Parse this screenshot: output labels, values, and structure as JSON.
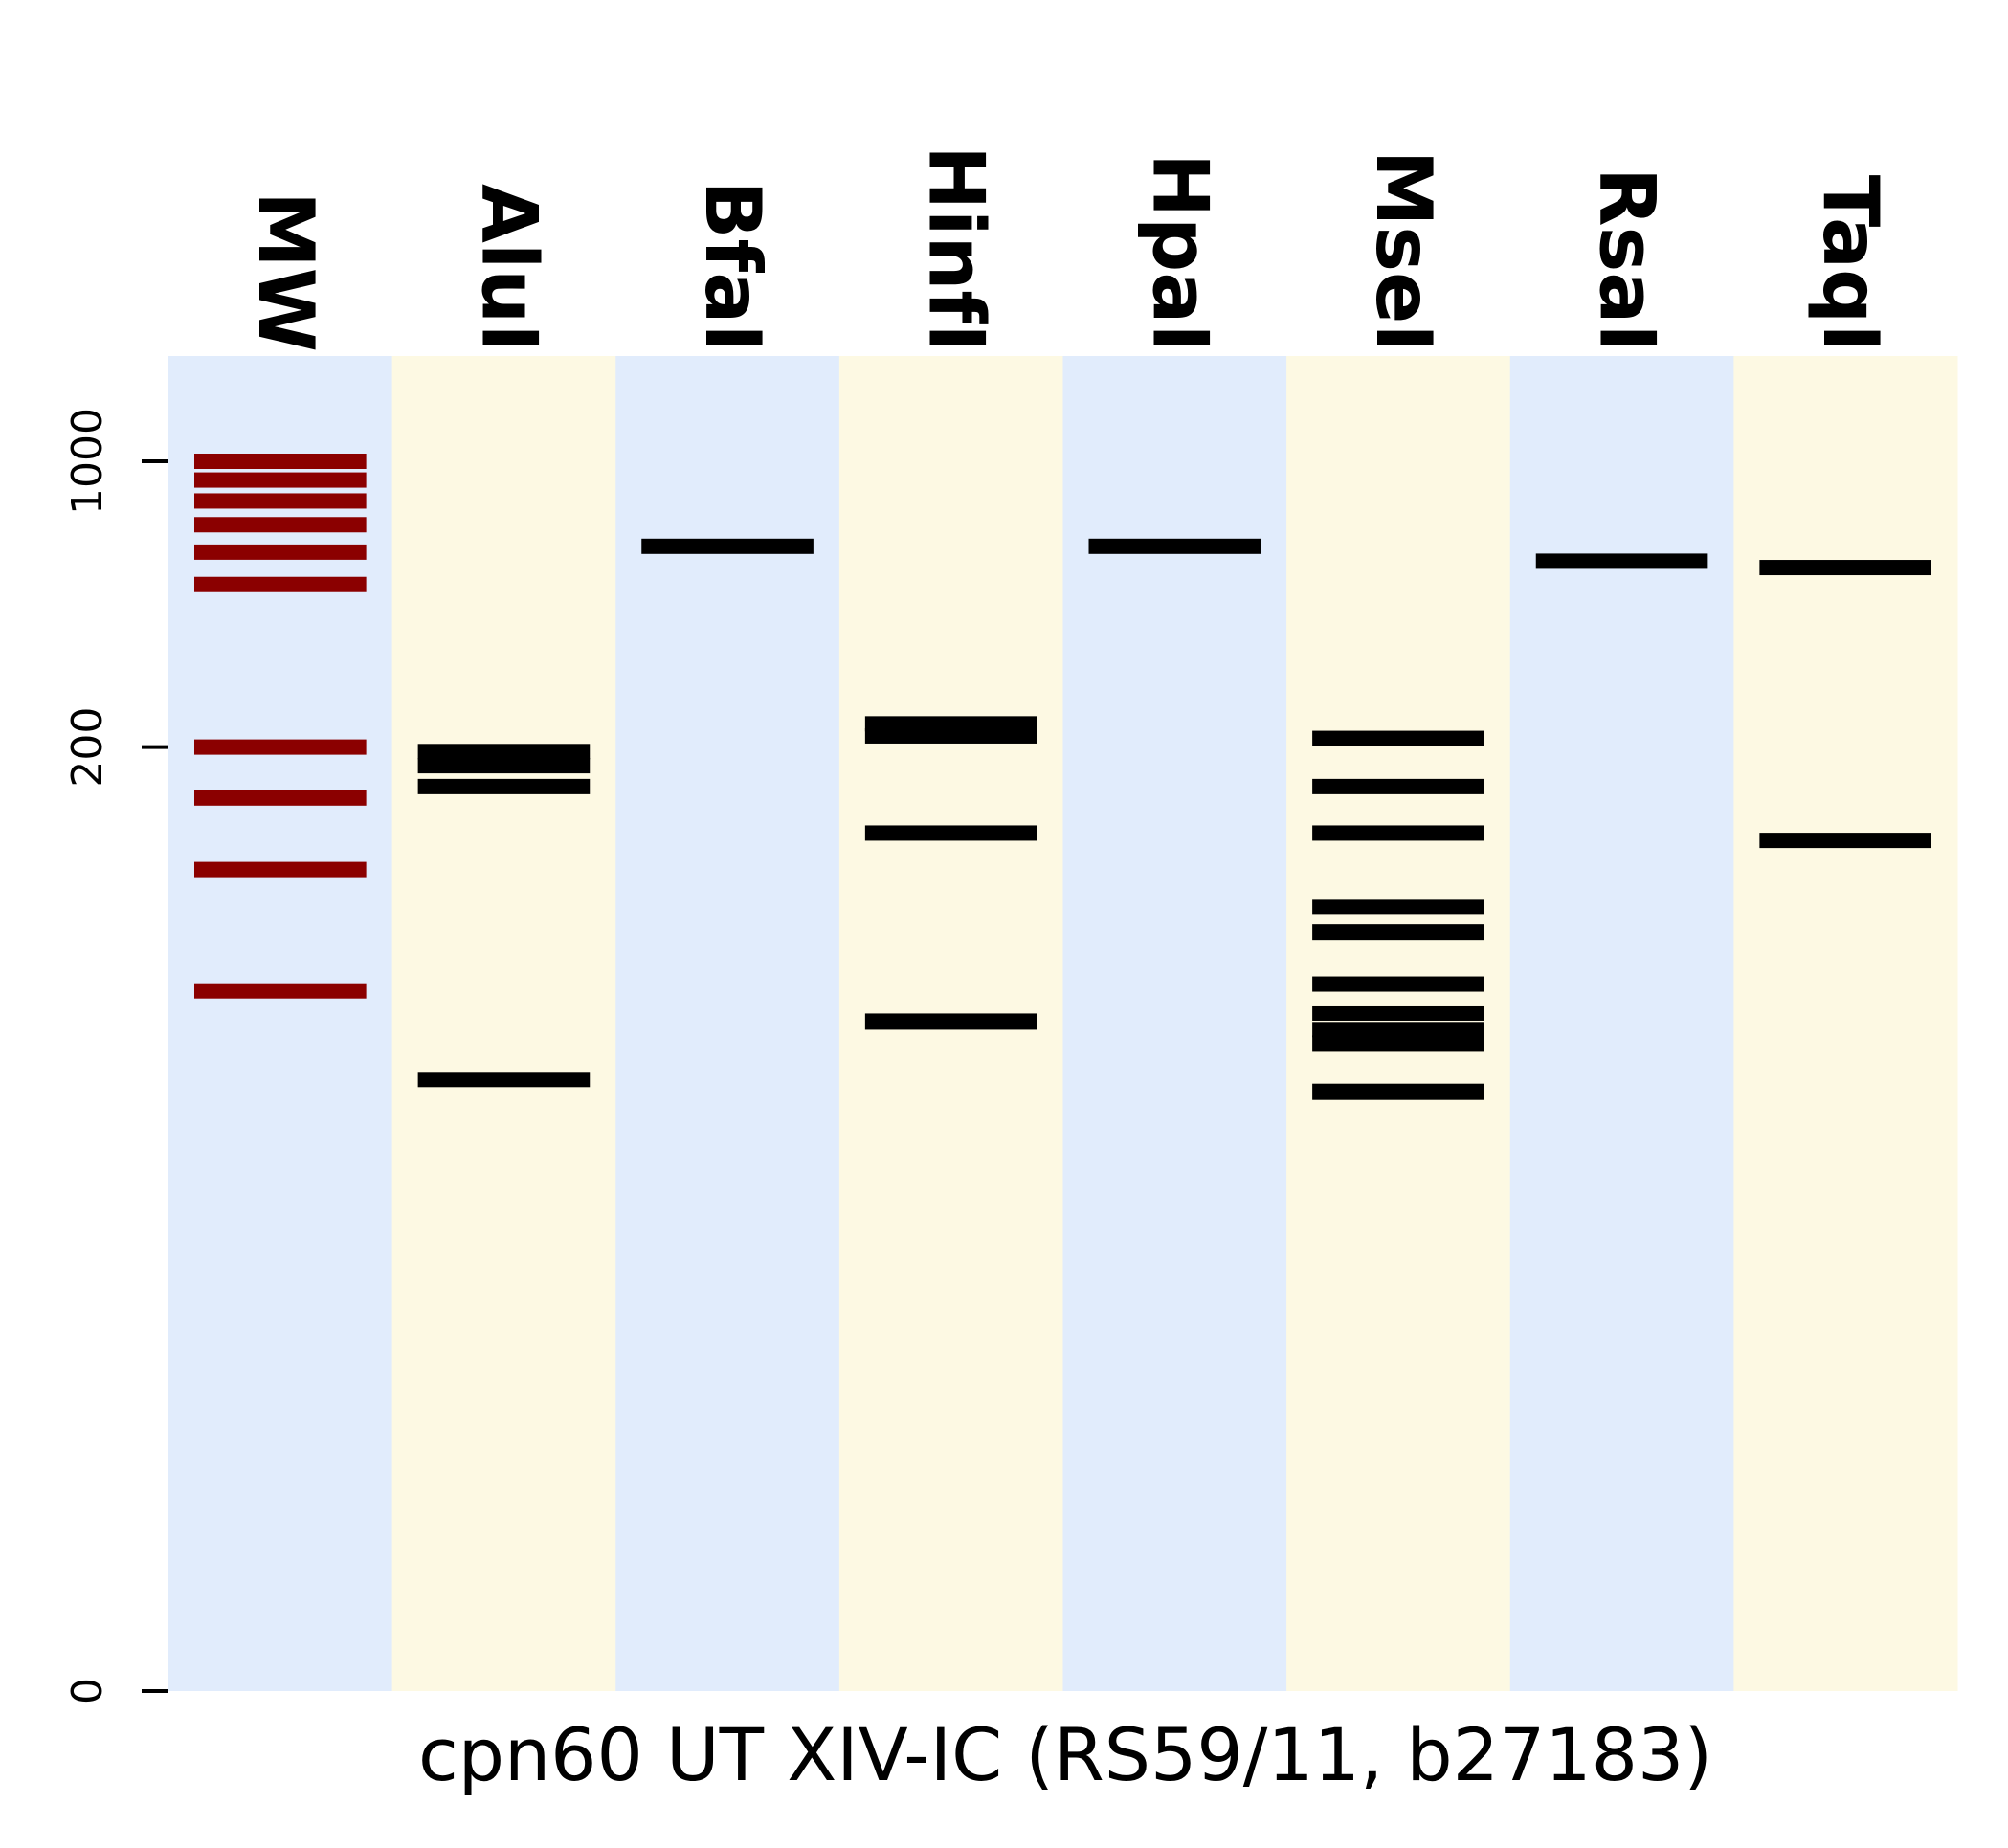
{
  "chart_data": {
    "type": "gel",
    "xlabel": "cpn60 UT XIV-IC (RS59/11, b27183)",
    "y_ticks": [
      {
        "value": 0,
        "label": "0"
      },
      {
        "value": 200,
        "label": "200"
      },
      {
        "value": 1000,
        "label": "1000"
      }
    ],
    "colors": {
      "lane_blue": "#e1ecfc",
      "lane_yellow": "#fdf9e3",
      "marker_band": "#8b0000",
      "digest_band": "#000000"
    },
    "lanes": [
      {
        "name": "MW",
        "bg": "blue",
        "band_color": "marker",
        "bands": [
          1000,
          900,
          800,
          700,
          600,
          500,
          200,
          150,
          100,
          50
        ]
      },
      {
        "name": "AluI",
        "bg": "yellow",
        "band_color": "digest",
        "bands": [
          195,
          180,
          160,
          30
        ]
      },
      {
        "name": "BfaI",
        "bg": "blue",
        "band_color": "digest",
        "bands": [
          620
        ]
      },
      {
        "name": "HinfI",
        "bg": "yellow",
        "band_color": "digest",
        "bands": [
          228,
          213,
          123,
          42
        ]
      },
      {
        "name": "HpaI",
        "bg": "blue",
        "band_color": "digest",
        "bands": [
          620
        ]
      },
      {
        "name": "MseI",
        "bg": "yellow",
        "band_color": "digest",
        "bands": [
          210,
          160,
          123,
          81,
          70,
          52,
          44,
          40,
          37,
          28
        ]
      },
      {
        "name": "RsaI",
        "bg": "blue",
        "band_color": "digest",
        "bands": [
          570
        ]
      },
      {
        "name": "TaqI",
        "bg": "yellow",
        "band_color": "digest",
        "bands": [
          550,
          118
        ]
      }
    ]
  }
}
